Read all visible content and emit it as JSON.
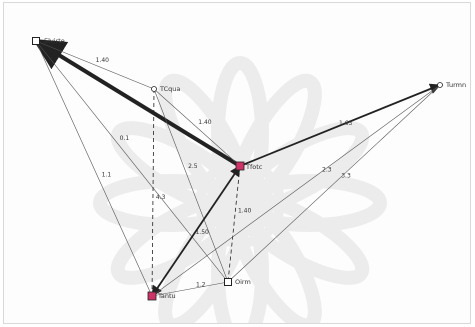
{
  "colors": {
    "edge": "#222222",
    "thin_edge": "#555555",
    "node_highlight": "#cc3366",
    "node_outline": "#222222",
    "watermark": "#cfcfcf"
  },
  "nodes": [
    {
      "id": "n1",
      "label": "Elvirte",
      "style": "square"
    },
    {
      "id": "n2",
      "label": "TCqua",
      "style": "dot"
    },
    {
      "id": "n3",
      "label": "Tfotc",
      "style": "highlight"
    },
    {
      "id": "n4",
      "label": "Turmn",
      "style": "dot"
    },
    {
      "id": "n5",
      "label": "Tantu",
      "style": "highlight"
    },
    {
      "id": "n6",
      "label": "Oirm",
      "style": "square"
    }
  ],
  "edges": [
    {
      "id": "e1",
      "from": "n3",
      "to": "n1",
      "weight": "",
      "style": "heavy",
      "arrow": "end"
    },
    {
      "id": "e2",
      "from": "n1",
      "to": "n2",
      "weight": "1.40",
      "style": "thin",
      "arrow": "none"
    },
    {
      "id": "e3",
      "from": "n1",
      "to": "n5",
      "weight": "1.1",
      "style": "thin",
      "arrow": "none"
    },
    {
      "id": "e4",
      "from": "n1",
      "to": "n6",
      "weight": "0.1",
      "style": "thin",
      "arrow": "none"
    },
    {
      "id": "e5",
      "from": "n2",
      "to": "n3",
      "weight": "1.40",
      "style": "thin",
      "arrow": "none"
    },
    {
      "id": "e6",
      "from": "n2",
      "to": "n5",
      "weight": "4.3",
      "style": "dashed",
      "arrow": "none"
    },
    {
      "id": "e7",
      "from": "n2",
      "to": "n6",
      "weight": "2.5",
      "style": "thin",
      "arrow": "none"
    },
    {
      "id": "e8",
      "from": "n3",
      "to": "n4",
      "weight": "1.63",
      "style": "medium",
      "arrow": "end"
    },
    {
      "id": "e9",
      "from": "n3",
      "to": "n5",
      "weight": "1.50",
      "style": "medium",
      "arrow": "both"
    },
    {
      "id": "e10",
      "from": "n3",
      "to": "n6",
      "weight": "1.40",
      "style": "dashed",
      "arrow": "none"
    },
    {
      "id": "e11",
      "from": "n4",
      "to": "n6",
      "weight": "3.3",
      "style": "thin",
      "arrow": "none"
    },
    {
      "id": "e12",
      "from": "n5",
      "to": "n6",
      "weight": "1.2",
      "style": "thin",
      "arrow": "none"
    },
    {
      "id": "e13",
      "from": "n4",
      "to": "n5",
      "weight": "2.3",
      "style": "thin",
      "arrow": "none"
    }
  ]
}
